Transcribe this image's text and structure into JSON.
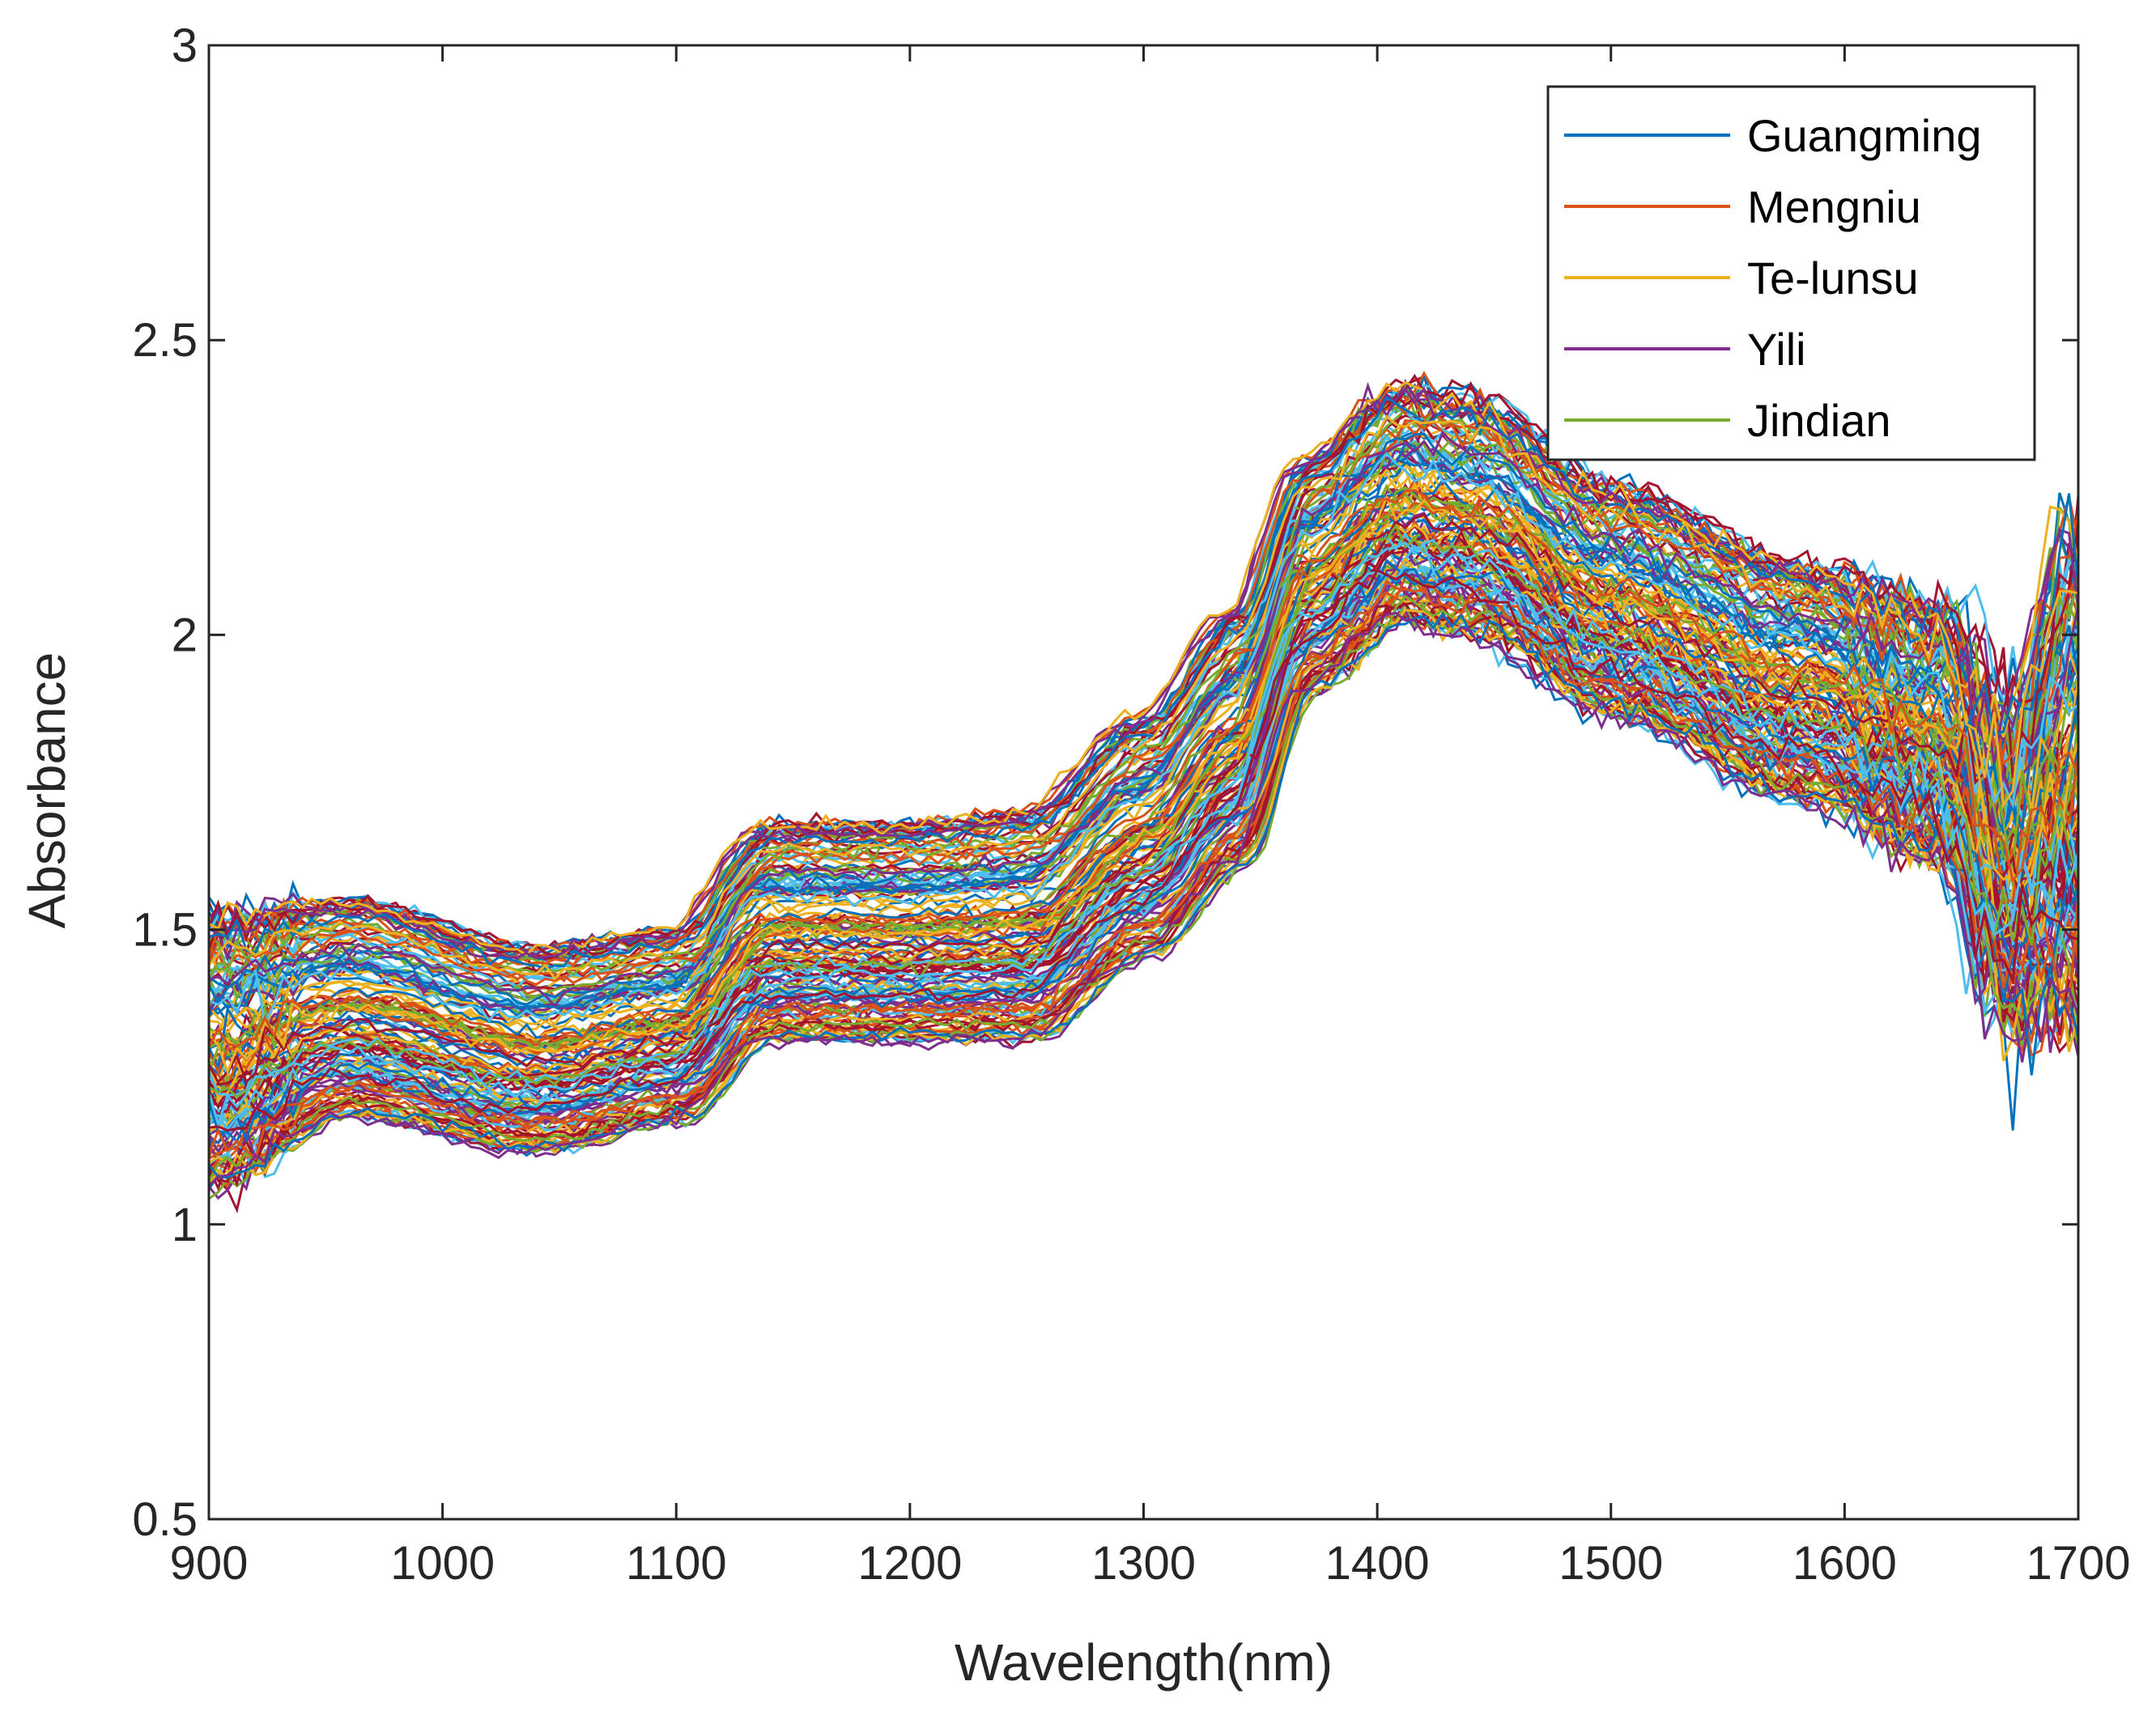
{
  "chart_data": {
    "type": "line",
    "title": "",
    "xlabel": "Wavelength(nm)",
    "ylabel": "Absorbance",
    "xlim": [
      900,
      1700
    ],
    "ylim": [
      0.5,
      3
    ],
    "xticks": [
      900,
      1000,
      1100,
      1200,
      1300,
      1400,
      1500,
      1600,
      1700
    ],
    "xtick_labels": [
      "900",
      "1000",
      "1100",
      "1200",
      "1300",
      "1400",
      "1500",
      "1600",
      "1700"
    ],
    "yticks": [
      0.5,
      1,
      1.5,
      2,
      2.5,
      3
    ],
    "ytick_labels": [
      "0.5",
      "1",
      "1.5",
      "2",
      "2.5",
      "3"
    ],
    "grid": false,
    "legend_position": "top-right",
    "series": [
      {
        "name": "Guangming",
        "color": "#0072BD"
      },
      {
        "name": "Mengniu",
        "color": "#D95319"
      },
      {
        "name": " Te-lunsu",
        "color": "#EDB120"
      },
      {
        "name": "Yili",
        "color": "#7E2F8E"
      },
      {
        "name": "Jindian",
        "color": "#77AC30"
      }
    ],
    "extra_line_colors": [
      "#4DBEEE",
      "#A2142F"
    ],
    "curve_count": 150,
    "wavelength_step_nm": 4,
    "spectrum_profile": {
      "wavelength": [
        900,
        960,
        1040,
        1100,
        1140,
        1200,
        1250,
        1300,
        1340,
        1370,
        1410,
        1440,
        1500,
        1580,
        1640,
        1670,
        1700
      ],
      "absorbance_mean": [
        1.29,
        1.37,
        1.27,
        1.33,
        1.49,
        1.49,
        1.51,
        1.69,
        1.92,
        2.16,
        2.26,
        2.23,
        2.08,
        1.93,
        1.85,
        1.62,
        1.7
      ],
      "spread_low": [
        1.06,
        1.18,
        1.12,
        1.17,
        1.31,
        1.31,
        1.31,
        1.45,
        1.6,
        1.9,
        2.02,
        2.0,
        1.86,
        1.72,
        1.62,
        1.35,
        1.35
      ],
      "spread_high": [
        1.52,
        1.55,
        1.47,
        1.5,
        1.68,
        1.68,
        1.7,
        1.86,
        2.04,
        2.3,
        2.42,
        2.4,
        2.25,
        2.12,
        2.05,
        1.85,
        2.2
      ]
    }
  }
}
